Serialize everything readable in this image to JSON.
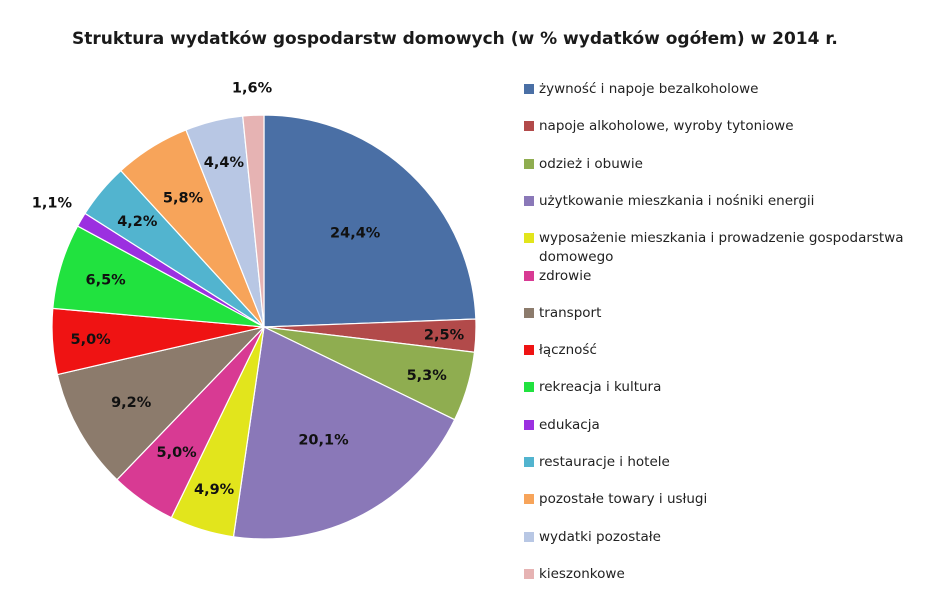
{
  "chart_data": {
    "type": "pie",
    "title": "Struktura wydatków gospodarstw domowych (w % wydatków ogółem) w 2014 r.",
    "legend_position": "right",
    "start_angle_deg": 0,
    "direction": "clockwise",
    "slices": [
      {
        "name": "żywność i napoje bezalkoholowe",
        "value": 24.4,
        "label": "24,4%",
        "color": "#4a6fa5"
      },
      {
        "name": "napoje alkoholowe, wyroby tytoniowe",
        "value": 2.5,
        "label": "2,5%",
        "color": "#b24a4a"
      },
      {
        "name": "odzież i obuwie",
        "value": 5.3,
        "label": "5,3%",
        "color": "#8fad50"
      },
      {
        "name": "użytkowanie mieszkania i nośniki energii",
        "value": 20.1,
        "label": "20,1%",
        "color": "#8a78b8"
      },
      {
        "name": "wyposażenie mieszkania i prowadzenie gospodarstwa domowego",
        "value": 4.9,
        "label": "4,9%",
        "color": "#e2e51c"
      },
      {
        "name": "zdrowie",
        "value": 5.0,
        "label": "5,0%",
        "color": "#d83a93"
      },
      {
        "name": "transport",
        "value": 9.2,
        "label": "9,2%",
        "color": "#8c7b6c"
      },
      {
        "name": "łączność",
        "value": 5.0,
        "label": "5,0%",
        "color": "#ef1313"
      },
      {
        "name": "rekreacja i kultura",
        "value": 6.5,
        "label": "6,5%",
        "color": "#21e23f"
      },
      {
        "name": "edukacja",
        "value": 1.1,
        "label": "1,1%",
        "color": "#9b30e0"
      },
      {
        "name": "restauracje i hotele",
        "value": 4.2,
        "label": "4,2%",
        "color": "#52b4cf"
      },
      {
        "name": "pozostałe towary i usługi",
        "value": 5.8,
        "label": "5,8%",
        "color": "#f7a45a"
      },
      {
        "name": "wydatki pozostałe",
        "value": 4.4,
        "label": "4,4%",
        "color": "#b8c7e4"
      },
      {
        "name": "kieszonkowe",
        "value": 1.6,
        "label": "1,6%",
        "color": "#e6b3b3"
      }
    ]
  }
}
